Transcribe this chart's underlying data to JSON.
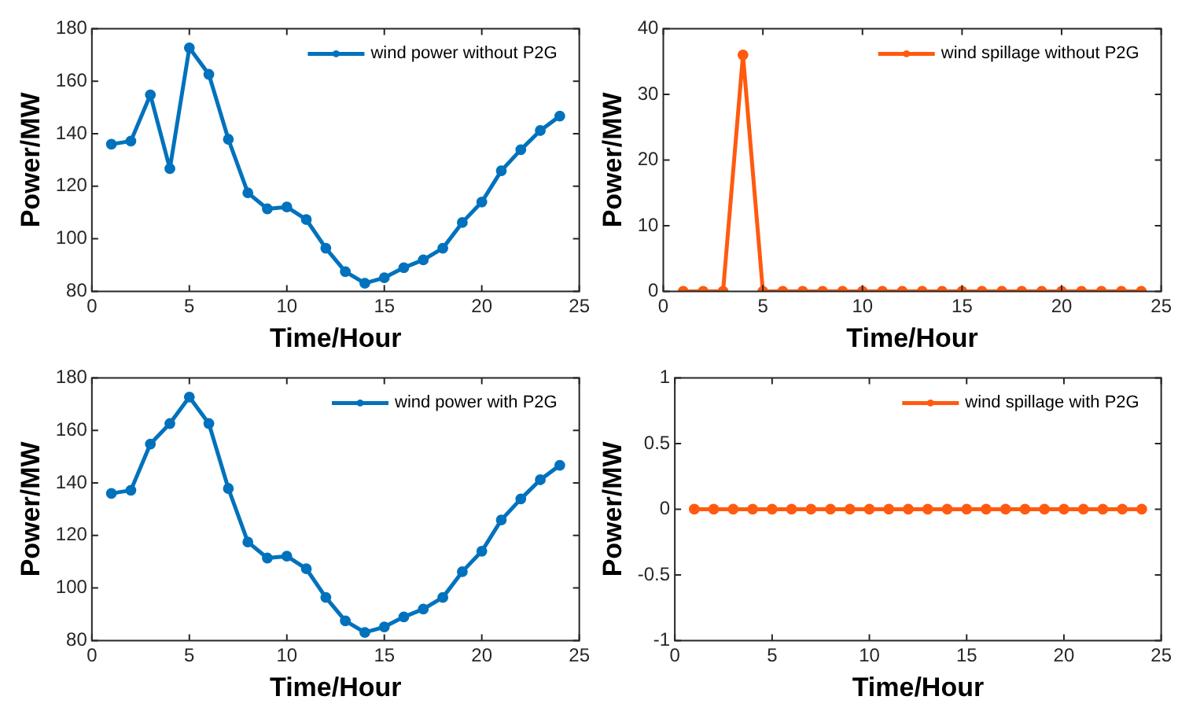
{
  "chart_data": [
    {
      "type": "line",
      "xlabel": "Time/Hour",
      "ylabel": "Power/MW",
      "x": [
        1,
        2,
        3,
        4,
        5,
        6,
        7,
        8,
        9,
        10,
        11,
        12,
        13,
        14,
        15,
        16,
        17,
        18,
        19,
        20,
        21,
        22,
        23,
        24
      ],
      "xlim": [
        0,
        25
      ],
      "xticks": [
        0,
        5,
        10,
        15,
        20,
        25
      ],
      "ylim": [
        80,
        180
      ],
      "yticks": [
        80,
        100,
        120,
        140,
        160,
        180
      ],
      "legend": "top right",
      "marker": "circle",
      "grid": false,
      "series": [
        {
          "name": "wind power without P2G",
          "color": "#0072bd",
          "values": [
            136,
            137.2,
            154.8,
            126.7,
            172.7,
            162.6,
            137.9,
            117.5,
            111.4,
            112.1,
            107.3,
            96.4,
            87.5,
            83.1,
            85.2,
            89,
            92,
            96.4,
            106.2,
            114,
            125.9,
            133.9,
            141.2,
            146.7
          ]
        }
      ]
    },
    {
      "type": "line",
      "xlabel": "Time/Hour",
      "ylabel": "Power/MW",
      "x": [
        1,
        2,
        3,
        4,
        5,
        6,
        7,
        8,
        9,
        10,
        11,
        12,
        13,
        14,
        15,
        16,
        17,
        18,
        19,
        20,
        21,
        22,
        23,
        24
      ],
      "xlim": [
        0,
        25
      ],
      "xticks": [
        0,
        5,
        10,
        15,
        20,
        25
      ],
      "ylim": [
        0,
        40
      ],
      "yticks": [
        0,
        10,
        20,
        30,
        40
      ],
      "legend": "top right",
      "marker": "circle",
      "grid": false,
      "series": [
        {
          "name": "wind spillage without P2G",
          "color": "#ff5a0f",
          "values": [
            0,
            0,
            0,
            36,
            0,
            0,
            0,
            0,
            0,
            0,
            0,
            0,
            0,
            0,
            0,
            0,
            0,
            0,
            0,
            0,
            0,
            0,
            0,
            0
          ]
        }
      ]
    },
    {
      "type": "line",
      "xlabel": "Time/Hour",
      "ylabel": "Power/MW",
      "x": [
        1,
        2,
        3,
        4,
        5,
        6,
        7,
        8,
        9,
        10,
        11,
        12,
        13,
        14,
        15,
        16,
        17,
        18,
        19,
        20,
        21,
        22,
        23,
        24
      ],
      "xlim": [
        0,
        25
      ],
      "xticks": [
        0,
        5,
        10,
        15,
        20,
        25
      ],
      "ylim": [
        80,
        180
      ],
      "yticks": [
        80,
        100,
        120,
        140,
        160,
        180
      ],
      "legend": "top right",
      "marker": "circle",
      "grid": false,
      "series": [
        {
          "name": "wind power with P2G",
          "color": "#0072bd",
          "values": [
            136,
            137.2,
            154.8,
            162.6,
            172.7,
            162.6,
            137.9,
            117.5,
            111.4,
            112.1,
            107.3,
            96.4,
            87.5,
            83.1,
            85.2,
            89,
            92,
            96.4,
            106.2,
            114,
            125.9,
            133.9,
            141.2,
            146.7
          ]
        }
      ]
    },
    {
      "type": "line",
      "xlabel": "Time/Hour",
      "ylabel": "Power/MW",
      "x": [
        1,
        2,
        3,
        4,
        5,
        6,
        7,
        8,
        9,
        10,
        11,
        12,
        13,
        14,
        15,
        16,
        17,
        18,
        19,
        20,
        21,
        22,
        23,
        24
      ],
      "xlim": [
        0,
        25
      ],
      "xticks": [
        0,
        5,
        10,
        15,
        20,
        25
      ],
      "ylim": [
        -1,
        1
      ],
      "yticks": [
        -1,
        -0.5,
        0,
        0.5,
        1
      ],
      "legend": "top right",
      "marker": "circle",
      "grid": false,
      "series": [
        {
          "name": "wind spillage with P2G",
          "color": "#ff5a0f",
          "values": [
            0,
            0,
            0,
            0,
            0,
            0,
            0,
            0,
            0,
            0,
            0,
            0,
            0,
            0,
            0,
            0,
            0,
            0,
            0,
            0,
            0,
            0,
            0,
            0
          ]
        }
      ]
    }
  ]
}
